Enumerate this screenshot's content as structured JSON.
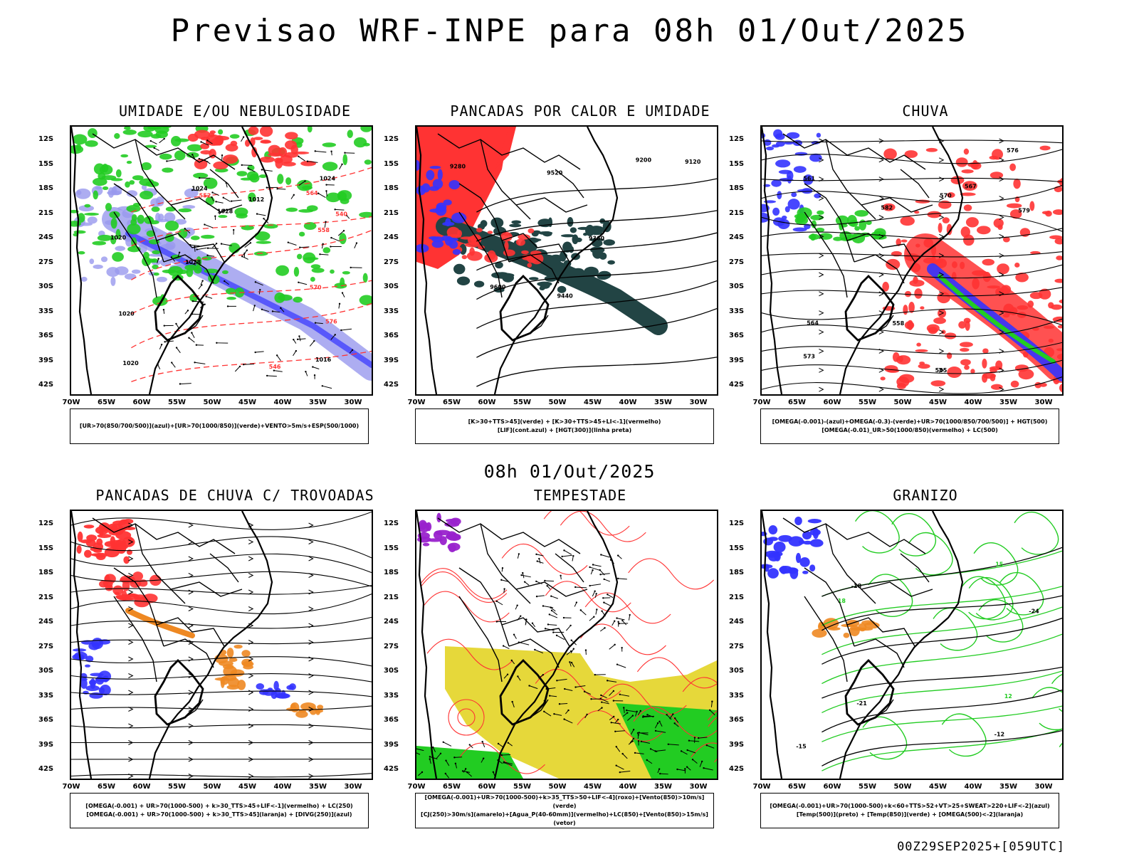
{
  "header": {
    "title": "Previsao WRF-INPE  para 08h 01/Out/2025",
    "subtitle": "08h 01/Out/2025",
    "footer": "00Z29SEP2025+[059UTC]"
  },
  "axes": {
    "lat_labels": [
      "12S",
      "15S",
      "18S",
      "21S",
      "24S",
      "27S",
      "30S",
      "33S",
      "36S",
      "39S",
      "42S"
    ],
    "lon_labels": [
      "70W",
      "65W",
      "60W",
      "55W",
      "50W",
      "45W",
      "40W",
      "35W",
      "30W"
    ]
  },
  "colors": {
    "blue": "#3333ff",
    "lightblue": "#9999ee",
    "green": "#22cc22",
    "red": "#ff3333",
    "darkteal": "#224444",
    "orange": "#ee8822",
    "yellow": "#e6d83a",
    "purple": "#9922cc"
  },
  "panels": [
    {
      "title": "UMIDADE E/OU NEBULOSIDADE",
      "legend": [
        "[UR>70(850/700/500)](azul)+[UR>70(1000/850)](verde)+VENTO>5m/s+ESP(500/1000)"
      ],
      "contour_labels": [
        "1016",
        "1020",
        "1024",
        "1028",
        "1012",
        "1020",
        "1024",
        "1028",
        "1020",
        "576",
        "570",
        "564",
        "558",
        "552",
        "546",
        "540"
      ]
    },
    {
      "title": "PANCADAS POR CALOR E UMIDADE",
      "legend": [
        "[K>30+TTS>45](verde) + [K>30+TTS>45+LI<-1](vermelho)",
        "[LIF](cont.azul) + [HGT(300)](linha preta)"
      ],
      "contour_labels": [
        "9600",
        "9520",
        "9440",
        "9360",
        "9280",
        "9200",
        "9120"
      ]
    },
    {
      "title": "CHUVA",
      "legend": [
        "[OMEGA(-0.001)-(azul)+OMEGA(-0.3)-(verde)+UR>70(1000/850/700/500)] + HGT(500)",
        "[OMEGA(-0.01)_UR>50(1000/850)(vermelho) + LC(500)"
      ],
      "contour_labels": [
        "585",
        "582",
        "579",
        "576",
        "573",
        "570",
        "567",
        "564",
        "561",
        "558"
      ]
    },
    {
      "title": "PANCADAS DE CHUVA C/ TROVOADAS",
      "legend": [
        "[OMEGA(-0.001) + UR>70(1000-500) + k>30_TTS>45+LIF<-1](vermelho) + LC(250)",
        "[OMEGA(-0.001) + UR>70(1000-500) + k>30_TTS>45](laranja) + [DIVG(250)](azul)"
      ],
      "contour_labels": []
    },
    {
      "title": "TEMPESTADE",
      "legend": [
        "[OMEGA(-0.001)+UR>70(1000-500)+k>35_TTS>50+LIF<-4](roxo)+[Vento(850)>10m/s](verde)",
        "[CJ(250)>30m/s](amarelo)+[Agua_P(40-60mm)](vermelho)+LC(850)+[Vento(850)>15m/s](vetor)"
      ],
      "contour_labels": []
    },
    {
      "title": "GRANIZO",
      "legend": [
        "[OMEGA(-0.001)+UR>70(1000-500)+k<60+TTS>52+VT>25+SWEAT>220+LIF<-2](azul)",
        "[Temp(500)](preto) + [Temp(850)](verde) + [OMEGA(500)<-2](laranja)"
      ],
      "contour_labels": [
        "-12",
        "-15",
        "-18",
        "-21",
        "-24",
        "12",
        "15",
        "18"
      ]
    }
  ]
}
